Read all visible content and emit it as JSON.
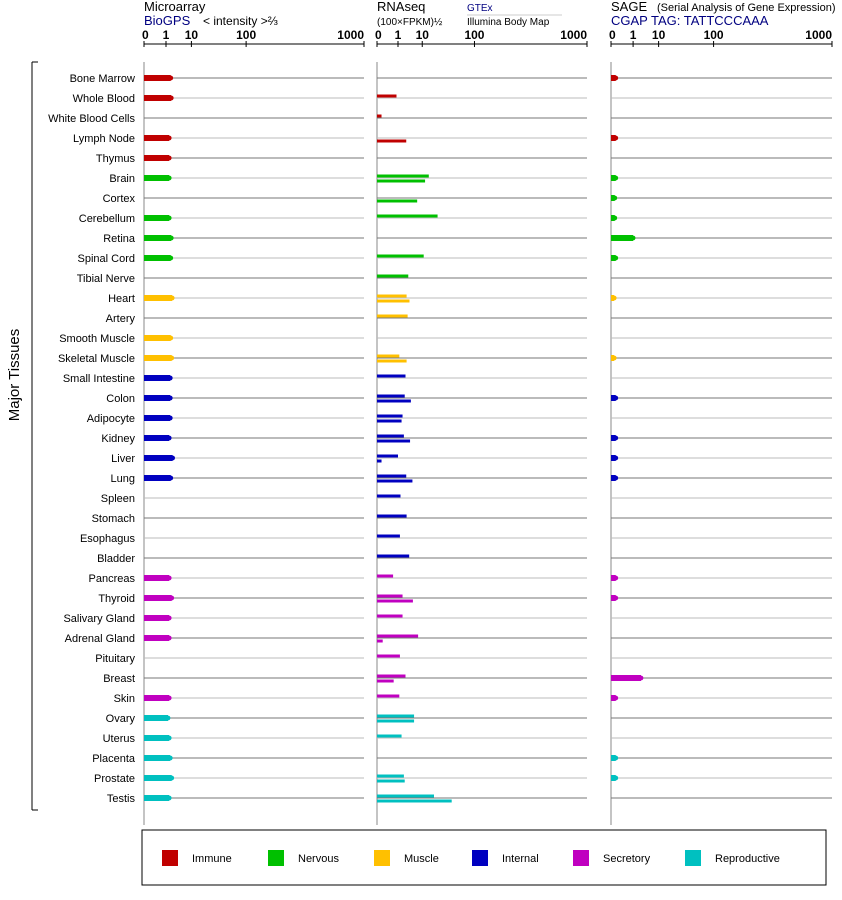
{
  "chart_data": {
    "type": "bar",
    "y_axis_label": "Major Tissues",
    "scale": "root",
    "categories": [
      "Bone Marrow",
      "Whole Blood",
      "White Blood Cells",
      "Lymph Node",
      "Thymus",
      "Brain",
      "Cortex",
      "Cerebellum",
      "Retina",
      "Spinal Cord",
      "Tibial Nerve",
      "Heart",
      "Artery",
      "Smooth Muscle",
      "Skeletal Muscle",
      "Small Intestine",
      "Colon",
      "Adipocyte",
      "Kidney",
      "Liver",
      "Lung",
      "Spleen",
      "Stomach",
      "Esophagus",
      "Bladder",
      "Pancreas",
      "Thyroid",
      "Salivary Gland",
      "Adrenal Gland",
      "Pituitary",
      "Breast",
      "Skin",
      "Ovary",
      "Uterus",
      "Placenta",
      "Prostate",
      "Testis"
    ],
    "groups": [
      "Immune",
      "Immune",
      "Immune",
      "Immune",
      "Immune",
      "Nervous",
      "Nervous",
      "Nervous",
      "Nervous",
      "Nervous",
      "Nervous",
      "Muscle",
      "Muscle",
      "Muscle",
      "Muscle",
      "Internal",
      "Internal",
      "Internal",
      "Internal",
      "Internal",
      "Internal",
      "Internal",
      "Internal",
      "Internal",
      "Internal",
      "Secretory",
      "Secretory",
      "Secretory",
      "Secretory",
      "Secretory",
      "Secretory",
      "Secretory",
      "Reproductive",
      "Reproductive",
      "Reproductive",
      "Reproductive",
      "Reproductive"
    ],
    "legend": [
      {
        "name": "Immune",
        "color": "#c00000"
      },
      {
        "name": "Nervous",
        "color": "#00c000"
      },
      {
        "name": "Muscle",
        "color": "#ffc000"
      },
      {
        "name": "Internal",
        "color": "#0000c0"
      },
      {
        "name": "Secretory",
        "color": "#c000c0"
      },
      {
        "name": "Reproductive",
        "color": "#00c0c0"
      }
    ],
    "panels": [
      {
        "title": "Microarray",
        "subtitle_link": "BioGPS",
        "unit_label": "< intensity >⅔",
        "ticks": [
          0,
          1,
          10,
          100,
          1000
        ],
        "tick_labels": [
          "0",
          "1",
          "10",
          "100",
          "1000"
        ],
        "xlim": [
          0,
          1000
        ],
        "series": [
          {
            "name": "BioGPS",
            "values": [
              1.8,
              1.9,
              null,
              1.5,
              1.5,
              1.5,
              null,
              1.5,
              1.9,
              1.8,
              null,
              2.1,
              null,
              1.8,
              2.0,
              1.7,
              1.7,
              1.7,
              1.5,
              2.2,
              1.8,
              null,
              null,
              null,
              null,
              1.5,
              2.0,
              1.5,
              1.5,
              null,
              null,
              1.5,
              1.3,
              1.5,
              1.7,
              2.0,
              1.5
            ]
          }
        ]
      },
      {
        "title": "RNAseq",
        "unit_label": "(100×FPKM)½",
        "ticks": [
          0,
          1,
          10,
          100,
          1000
        ],
        "tick_labels": [
          "0",
          "1",
          "10",
          "100",
          "1000"
        ],
        "xlim": [
          0,
          1000
        ],
        "legend_entries": [
          "GTEx",
          "Illumina Body Map"
        ],
        "series": [
          {
            "name": "GTEx",
            "values": [
              null,
              0.8,
              0.01,
              null,
              null,
              15,
              null,
              24,
              null,
              11,
              3.3,
              2.8,
              3.1,
              null,
              1.2,
              2.5,
              2.3,
              1.8,
              2.1,
              1.0,
              2.7,
              1.4,
              2.8,
              1.3,
              3.6,
              0.45,
              1.8,
              1.8,
              7.5,
              1.3,
              2.5,
              1.2,
              5.5,
              1.6,
              null,
              2.1,
              20
            ]
          },
          {
            "name": "Illumina Body Map",
            "values": [
              null,
              null,
              null,
              2.7,
              null,
              12,
              7.0,
              null,
              null,
              null,
              null,
              3.7,
              null,
              null,
              2.8,
              null,
              4.2,
              1.6,
              3.9,
              0.01,
              4.8,
              null,
              null,
              null,
              null,
              null,
              5.0,
              null,
              0.02,
              null,
              0.5,
              null,
              5.5,
              null,
              null,
              2.3,
              45
            ]
          }
        ]
      },
      {
        "title": "SAGE",
        "subtitle": "(Serial Analysis of Gene Expression)",
        "subtitle_link": "CGAP TAG: TATTCCCAAA",
        "ticks": [
          0,
          1,
          10,
          100,
          1000
        ],
        "tick_labels": [
          "0",
          "1",
          "10",
          "100",
          "1000"
        ],
        "xlim": [
          0,
          1000
        ],
        "series": [
          {
            "name": "SAGE",
            "values": [
              0.01,
              null,
              null,
              0.01,
              null,
              0.01,
              0.005,
              0.005,
              1.0,
              0.01,
              null,
              0.003,
              null,
              null,
              0.003,
              null,
              0.01,
              null,
              0.01,
              0.01,
              0.01,
              null,
              null,
              null,
              null,
              0.01,
              0.01,
              null,
              null,
              null,
              2.5,
              0.01,
              null,
              null,
              0.01,
              0.01,
              null
            ]
          }
        ]
      }
    ]
  }
}
